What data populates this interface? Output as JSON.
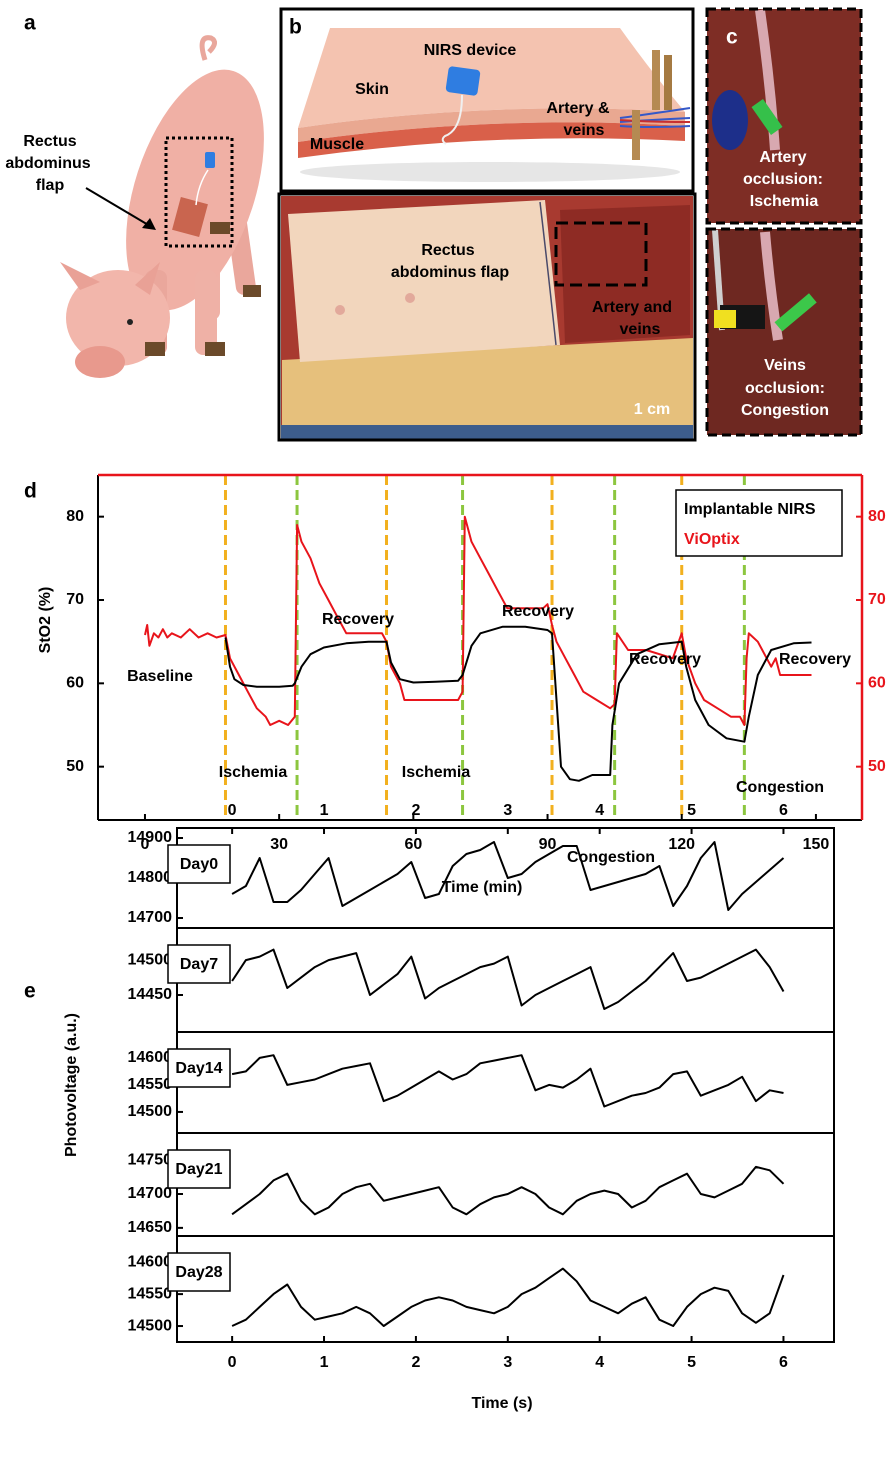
{
  "figure": {
    "panel_labels": [
      "a",
      "b",
      "c",
      "d",
      "e"
    ],
    "panel_a": {
      "label": [
        "Rectus",
        "abdominus",
        "flap"
      ]
    },
    "panel_b": {
      "device": "NIRS device",
      "skin": "Skin",
      "vessels": [
        "Artery &",
        "veins"
      ],
      "muscle": "Muscle",
      "flap": [
        "Rectus",
        "abdominus flap"
      ],
      "vessels_photo": [
        "Artery and",
        "veins"
      ],
      "scale": "1 cm"
    },
    "panel_c": {
      "artery": [
        "Artery",
        "occlusion:",
        "Ischemia"
      ],
      "veins": [
        "Veins",
        "occlusion:",
        "Congestion"
      ]
    }
  },
  "chart_data": [
    {
      "type": "line",
      "xlabel": "Time (min)",
      "ylabel": "StO2 (%)",
      "xlim": [
        -10.5,
        160.3
      ],
      "xticks": [
        0,
        30,
        60,
        90,
        120,
        150
      ],
      "ylim": [
        43.6,
        85
      ],
      "yticks": [
        50,
        60,
        70,
        80
      ],
      "y2lim": [
        43.6,
        85
      ],
      "y2ticks": [
        50,
        60,
        70,
        80
      ],
      "y2color": "#e8141b",
      "legend": "upper right",
      "series": [
        {
          "name": "Implantable NIRS",
          "color": "#000000",
          "x": [
            18,
            19,
            20,
            22,
            25,
            30,
            33,
            33.5,
            35,
            37,
            40,
            45,
            50,
            53,
            54,
            55,
            57,
            60,
            65,
            70,
            71,
            73,
            75,
            80,
            85,
            90,
            91,
            92,
            93,
            95,
            97,
            100,
            104,
            104.5,
            106,
            110,
            115,
            120,
            121,
            123,
            126,
            130,
            134,
            135,
            137,
            140,
            145,
            149
          ],
          "values": [
            65.5,
            62,
            60.5,
            59.8,
            59.6,
            59.6,
            59.7,
            60,
            62,
            63.5,
            64.3,
            64.8,
            65,
            65,
            65,
            62.5,
            60.5,
            60.1,
            60.2,
            60.3,
            61,
            64.5,
            66,
            66.8,
            66.8,
            66.4,
            66,
            58,
            50,
            48.5,
            48.3,
            49,
            49,
            55,
            60,
            63.5,
            64.7,
            65,
            62,
            58,
            55,
            53.4,
            53,
            56,
            61,
            64,
            64.8,
            64.9
          ]
        },
        {
          "name": "ViOptix",
          "color": "#e8141b",
          "axis": "y2",
          "x": [
            0,
            0.5,
            1,
            2,
            3,
            4,
            5,
            6,
            8,
            10,
            12,
            14,
            16,
            18,
            19,
            21,
            23,
            25,
            27,
            28,
            30,
            32,
            33.5,
            34,
            35,
            37,
            39,
            41,
            43,
            45,
            53,
            54,
            55,
            57,
            58,
            62,
            66,
            70,
            71,
            71.5,
            73,
            75,
            77,
            79,
            81,
            89,
            90,
            91,
            92,
            94,
            96,
            98,
            101,
            104,
            105,
            105.5,
            108,
            112,
            118,
            120,
            121,
            123,
            125,
            128,
            131,
            133,
            134,
            134.5,
            135,
            137,
            139,
            140,
            141,
            142,
            146,
            149
          ],
          "values": [
            65.8,
            67,
            64.5,
            66,
            65.5,
            66.5,
            65.5,
            66,
            65.5,
            66.5,
            65.5,
            66,
            65.5,
            65.8,
            63,
            61,
            59,
            57,
            56,
            55,
            55.5,
            55,
            56,
            79,
            77,
            75,
            72,
            70,
            68,
            66,
            66,
            65,
            62,
            60,
            58,
            58,
            58,
            58,
            59,
            80,
            77,
            75,
            73,
            71,
            69,
            69,
            69.5,
            67,
            65,
            63,
            61,
            59,
            58,
            57,
            57.5,
            66,
            64,
            64,
            63,
            66,
            63,
            60,
            58,
            57,
            56,
            56,
            55,
            63,
            66,
            65,
            63,
            62,
            63,
            61,
            61,
            61
          ]
        }
      ],
      "vlines": [
        {
          "x": 18,
          "color": "#f2b01e"
        },
        {
          "x": 34,
          "color": "#8cc63f"
        },
        {
          "x": 54,
          "color": "#f2b01e"
        },
        {
          "x": 71,
          "color": "#8cc63f"
        },
        {
          "x": 91,
          "color": "#f2b01e"
        },
        {
          "x": 105,
          "color": "#8cc63f"
        },
        {
          "x": 120,
          "color": "#f2b01e"
        },
        {
          "x": 134,
          "color": "#8cc63f"
        }
      ],
      "annotations": [
        "Baseline",
        "Ischemia",
        "Recovery",
        "Ischemia",
        "Recovery",
        "Congestion",
        "Recovery",
        "Congestion",
        "Recovery"
      ]
    },
    {
      "type": "stacked-line",
      "xlabel": "Time (s)",
      "ylabel": "Photovoltage (a.u.)",
      "xlim": [
        -0.6,
        6.55
      ],
      "xticks": [
        0,
        1,
        2,
        3,
        4,
        5,
        6
      ],
      "x": [
        0,
        0.15,
        0.3,
        0.45,
        0.6,
        0.75,
        0.9,
        1.05,
        1.2,
        1.35,
        1.5,
        1.65,
        1.8,
        1.95,
        2.1,
        2.25,
        2.4,
        2.55,
        2.7,
        2.85,
        3,
        3.15,
        3.3,
        3.45,
        3.6,
        3.75,
        3.9,
        4.05,
        4.2,
        4.35,
        4.5,
        4.65,
        4.8,
        4.95,
        5.1,
        5.25,
        5.4,
        5.55,
        5.7,
        5.85,
        6
      ],
      "series": [
        {
          "name": "Day0",
          "color": "#000000",
          "ylim": [
            14675,
            14925
          ],
          "yticks": [
            14700,
            14800,
            14900
          ],
          "values": [
            14760,
            14780,
            14850,
            14740,
            14740,
            14770,
            14810,
            14850,
            14730,
            14750,
            14770,
            14790,
            14810,
            14840,
            14750,
            14760,
            14830,
            14860,
            14870,
            14890,
            14800,
            14810,
            14840,
            14860,
            14880,
            14880,
            14770,
            14780,
            14790,
            14800,
            14810,
            14830,
            14730,
            14780,
            14850,
            14890,
            14720,
            14760,
            14790,
            14820,
            14850
          ]
        },
        {
          "name": "Day7",
          "color": "#000000",
          "ylim": [
            14397,
            14546
          ],
          "yticks": [
            14450,
            14500
          ],
          "values": [
            14470,
            14500,
            14505,
            14515,
            14460,
            14475,
            14490,
            14500,
            14505,
            14510,
            14450,
            14465,
            14480,
            14505,
            14445,
            14460,
            14470,
            14480,
            14490,
            14495,
            14505,
            14435,
            14450,
            14460,
            14470,
            14480,
            14490,
            14430,
            14440,
            14455,
            14470,
            14490,
            14510,
            14470,
            14475,
            14485,
            14495,
            14505,
            14515,
            14490,
            14455
          ]
        },
        {
          "name": "Day14",
          "color": "#000000",
          "ylim": [
            14461,
            14648
          ],
          "yticks": [
            14500,
            14550,
            14600
          ],
          "values": [
            14570,
            14575,
            14600,
            14605,
            14550,
            14555,
            14560,
            14570,
            14580,
            14585,
            14590,
            14520,
            14530,
            14545,
            14560,
            14575,
            14560,
            14570,
            14590,
            14595,
            14600,
            14605,
            14540,
            14550,
            14545,
            14560,
            14580,
            14510,
            14520,
            14530,
            14535,
            14545,
            14570,
            14575,
            14530,
            14540,
            14550,
            14565,
            14520,
            14540,
            14535
          ]
        },
        {
          "name": "Day21",
          "color": "#000000",
          "ylim": [
            14638,
            14790
          ],
          "yticks": [
            14650,
            14700,
            14750
          ],
          "values": [
            14670,
            14685,
            14700,
            14720,
            14730,
            14690,
            14670,
            14680,
            14700,
            14710,
            14715,
            14690,
            14695,
            14700,
            14705,
            14710,
            14680,
            14670,
            14685,
            14695,
            14700,
            14710,
            14700,
            14680,
            14670,
            14690,
            14700,
            14705,
            14700,
            14680,
            14690,
            14710,
            14720,
            14730,
            14700,
            14695,
            14705,
            14715,
            14740,
            14735,
            14715
          ]
        },
        {
          "name": "Day28",
          "color": "#000000",
          "ylim": [
            14475,
            14641
          ],
          "yticks": [
            14500,
            14550,
            14600
          ],
          "values": [
            14500,
            14510,
            14530,
            14550,
            14565,
            14530,
            14510,
            14515,
            14520,
            14530,
            14520,
            14500,
            14515,
            14530,
            14540,
            14545,
            14540,
            14530,
            14525,
            14520,
            14530,
            14550,
            14560,
            14575,
            14590,
            14570,
            14540,
            14530,
            14520,
            14535,
            14545,
            14510,
            14500,
            14530,
            14550,
            14560,
            14555,
            14520,
            14505,
            14520,
            14580
          ]
        }
      ]
    }
  ]
}
